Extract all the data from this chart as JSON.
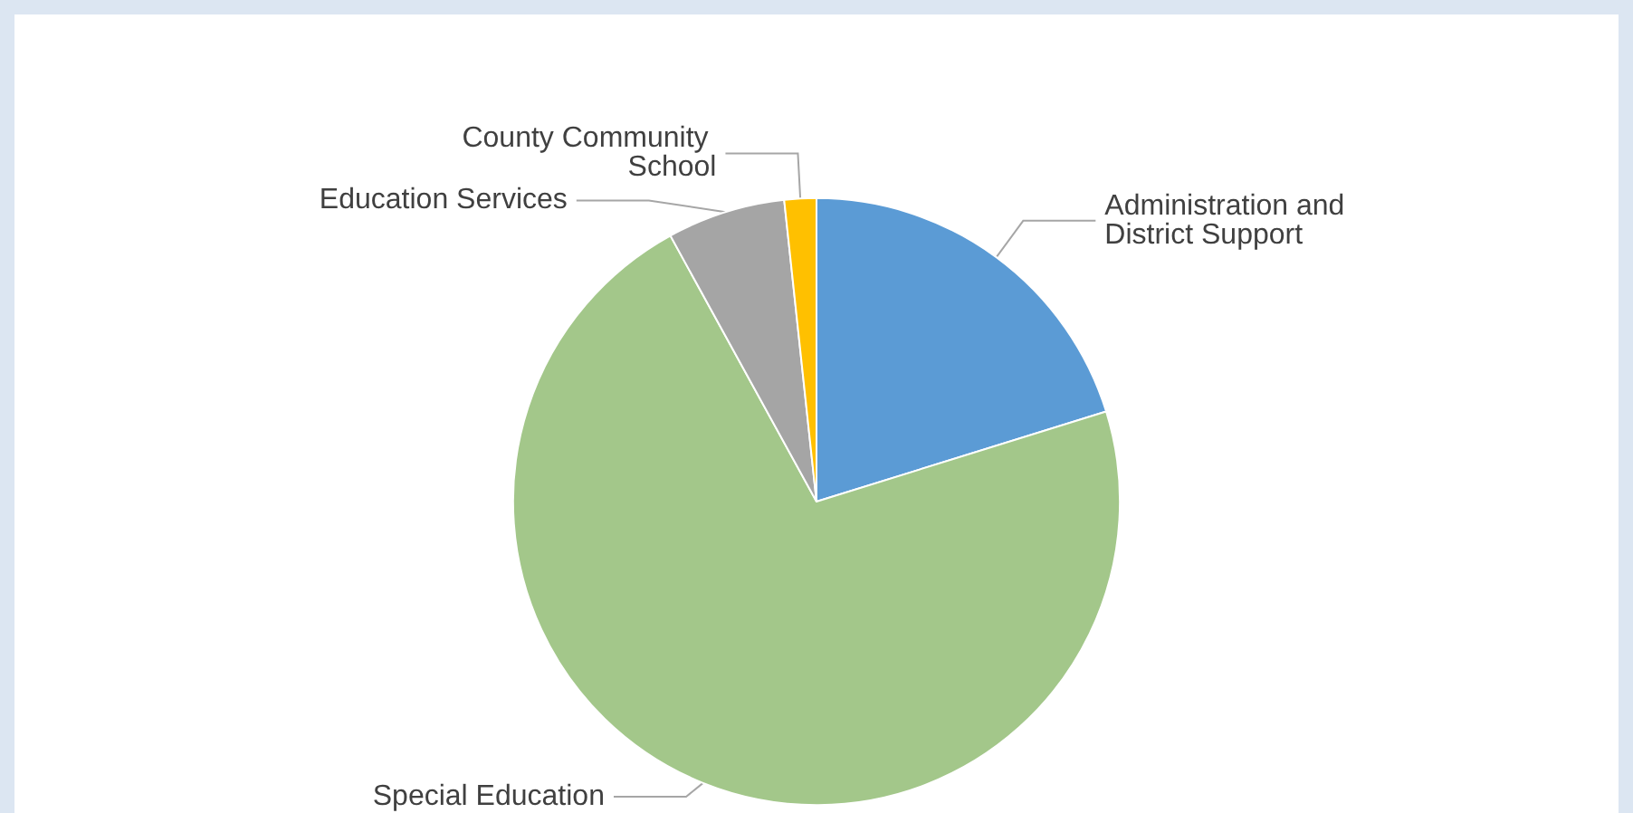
{
  "chart_data": {
    "type": "pie",
    "categories": [
      "Administration and District Support",
      "Special Education",
      "Education Services",
      "County Community School"
    ],
    "values": [
      20.2,
      71.8,
      6.3,
      1.7
    ],
    "colors": [
      "#5b9bd5",
      "#a3c78a",
      "#a5a5a5",
      "#ffc000"
    ]
  }
}
